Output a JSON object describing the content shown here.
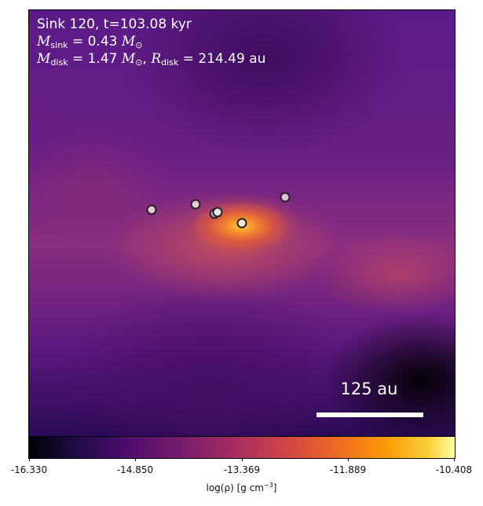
{
  "title_line": "Sink 120, t=103.08 kyr",
  "mass_sink": {
    "symbol": "M",
    "subscript": "sink",
    "equals": " = 0.43 ",
    "unit": "M",
    "unit_sub": "⊙"
  },
  "mass_disk": {
    "symbol": "M",
    "subscript": "disk",
    "equals": " = 1.47 ",
    "unit": "M",
    "unit_sub": "⊙",
    "sep": ", "
  },
  "radius_disk": {
    "symbol": "R",
    "subscript": "disk",
    "equals": " = 214.49 au"
  },
  "scale_bar_label": "125 au",
  "colorbar": {
    "ticks": [
      "-16.330",
      "-14.850",
      "-13.369",
      "-11.889",
      "-10.408"
    ],
    "label_main": "log(ρ) [g cm",
    "label_exp": "−3",
    "label_end": "]",
    "colormap": "inferno"
  },
  "sinks": [
    {
      "fill": "#e7c9d0"
    },
    {
      "fill": "#e7c9d0"
    },
    {
      "fill": "#b9a9c6"
    },
    {
      "fill": "#ece6ee"
    },
    {
      "fill": "#f6e6d2"
    },
    {
      "fill": "#e3c0cf"
    }
  ]
}
